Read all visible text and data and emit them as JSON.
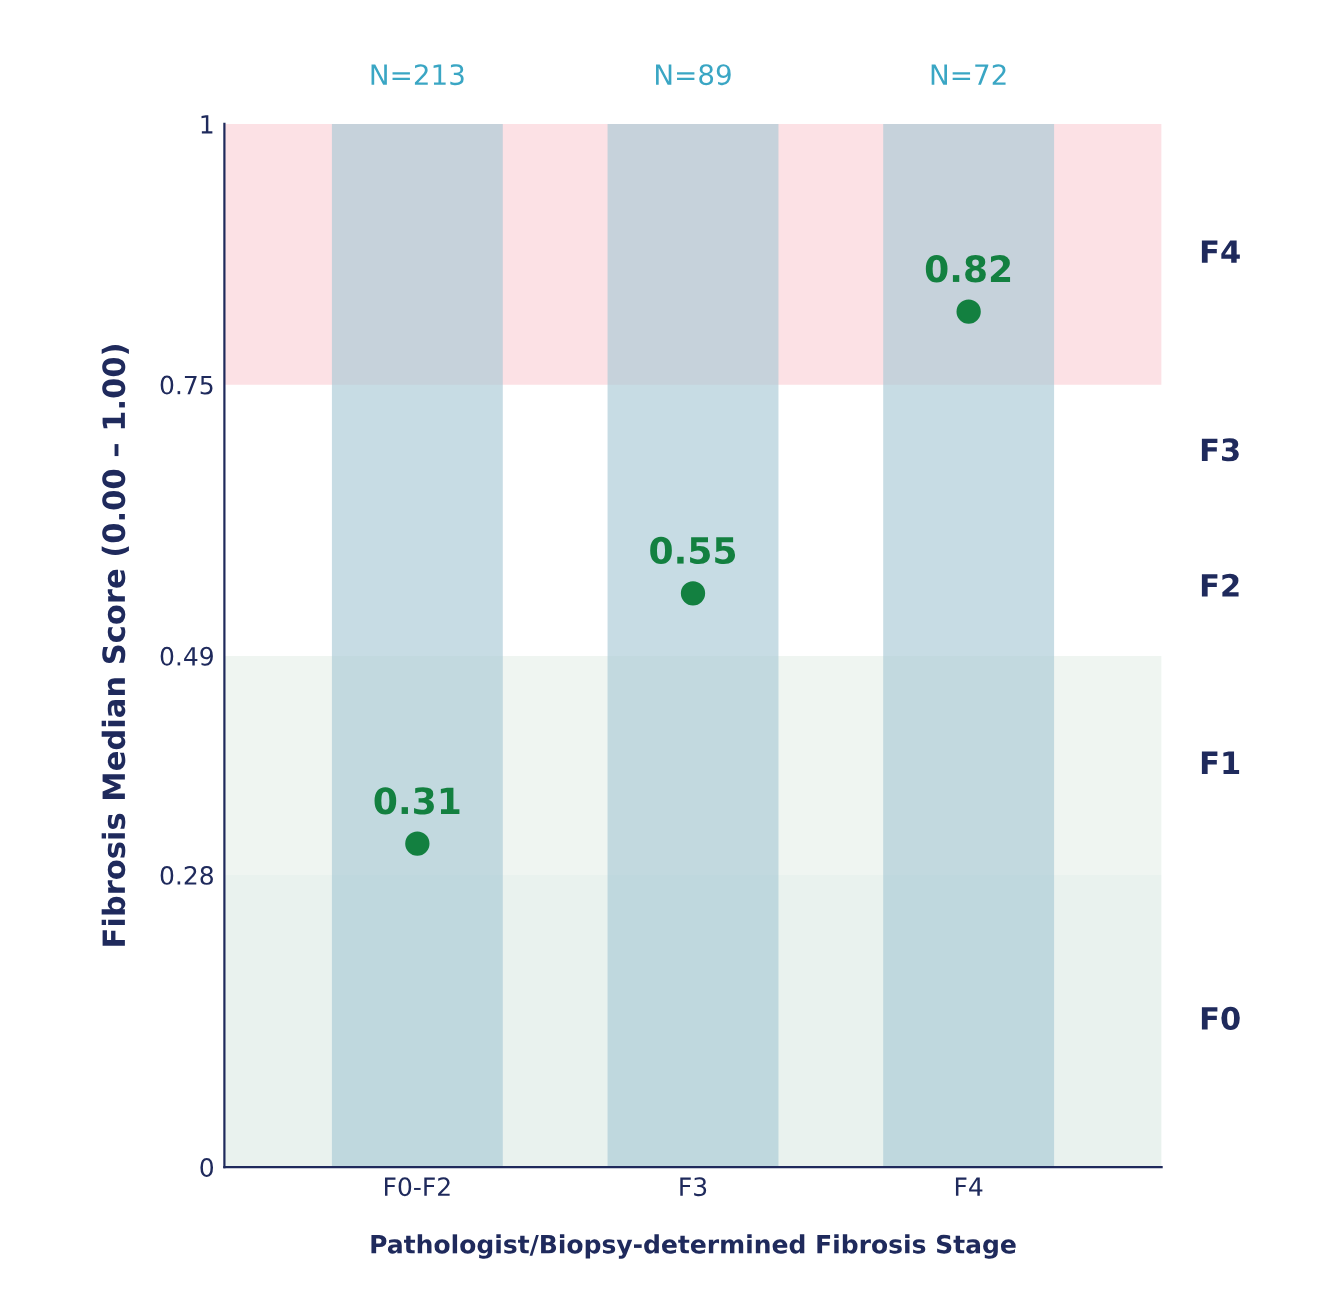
{
  "chart_data": {
    "type": "bar",
    "xlabel": "Pathologist/Biopsy-determined Fibrosis Stage",
    "ylabel": "Fibrosis Median Score (0.00 – 1.00)",
    "categories": [
      "F0-F2",
      "F3",
      "F4"
    ],
    "series": [
      {
        "color": "#a9c9d6",
        "values": [
          1,
          1,
          1
        ]
      },
      {
        "type": "scatter",
        "color": "#138040",
        "values": [
          0.31,
          0.55,
          0.82
        ],
        "value_labels": [
          "0.31",
          "0.55",
          "0.82"
        ]
      }
    ],
    "annotations": [
      {
        "text": "N=213",
        "x": "F0-F2",
        "y": 1
      },
      {
        "text": "N=89",
        "x": "F3",
        "y": 1
      },
      {
        "text": "N=72",
        "x": "F4",
        "y": 1
      },
      "F2",
      "F3"
    ],
    "ylim": [
      0,
      1
    ],
    "yticks": [
      0,
      0.28,
      0.49,
      0.75,
      1
    ],
    "bands": [
      {
        "axis": "y",
        "from": 0,
        "to": 0.28,
        "label": "F0",
        "color": "#e9f2ee"
      },
      {
        "axis": "y",
        "from": 0.28,
        "to": 0.49,
        "label": "F1",
        "color": "#eff5f1"
      },
      {
        "axis": "y",
        "from": 0.75,
        "to": 1,
        "label": "F4",
        "color": "#fce1e5"
      }
    ],
    "grid": false,
    "legend": false,
    "marker": "circle"
  }
}
